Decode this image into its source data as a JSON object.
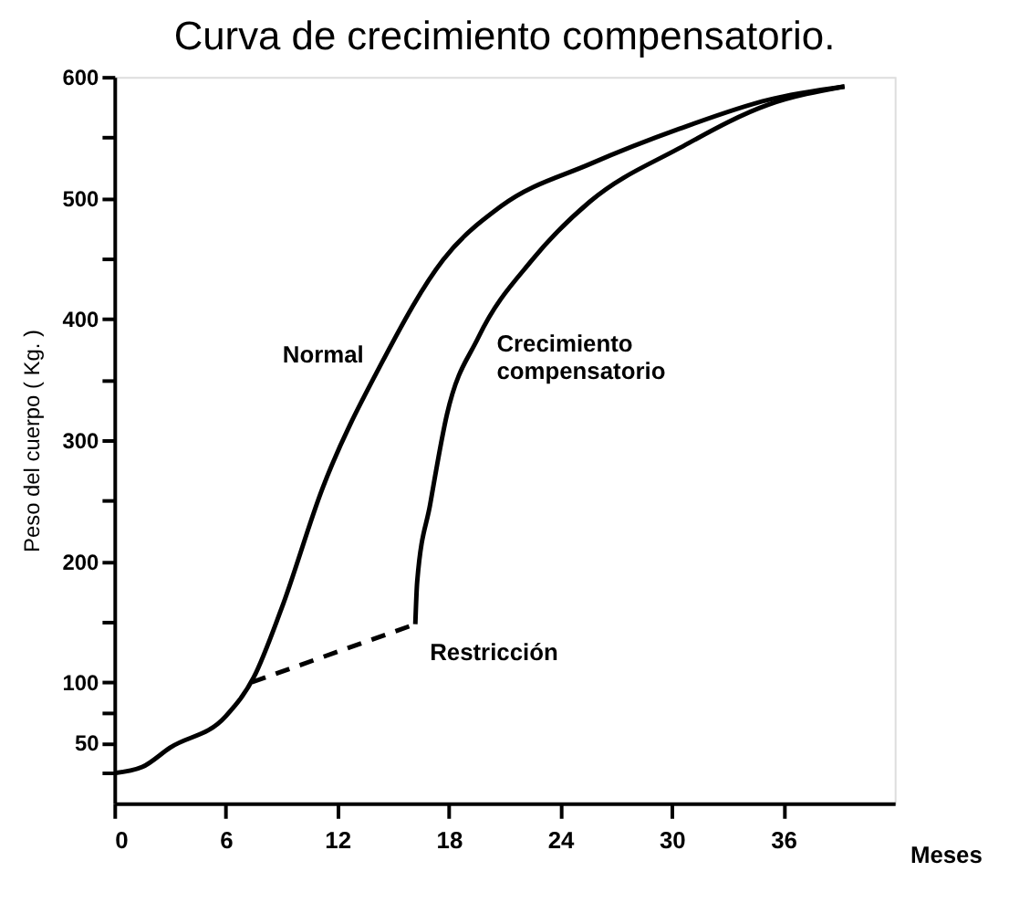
{
  "chart_data": {
    "type": "line",
    "title": "Curva de crecimiento compensatorio.",
    "xlabel": "Meses",
    "ylabel": "Peso del cuerpo ( Kg. )",
    "xlim": [
      0,
      42
    ],
    "xticks": [
      0,
      6,
      12,
      18,
      24,
      30,
      36
    ],
    "ylim": [
      0,
      600
    ],
    "yticks": [
      {
        "value": 25,
        "label": null
      },
      50,
      {
        "value": 75,
        "label": null
      },
      100,
      {
        "value": 150,
        "label": null
      },
      200,
      {
        "value": 250,
        "label": null
      },
      300,
      {
        "value": 350,
        "label": null
      },
      400,
      {
        "value": 450,
        "label": null
      },
      500,
      {
        "value": 550,
        "label": null
      },
      600
    ],
    "grid": false,
    "marker": "none",
    "series": [
      {
        "name": "Normal",
        "color": "#000000",
        "line_style": "solid",
        "x": [
          0,
          1.5,
          3,
          6,
          7.5,
          9,
          11.2,
          14.4,
          17.7,
          20.8,
          25.6,
          30.4,
          35.2,
          39.3
        ],
        "values": [
          25,
          30,
          46,
          72,
          104,
          161,
          260,
          364,
          449,
          493,
          528,
          557,
          581,
          592
        ]
      },
      {
        "name": "Restricción",
        "color": "#000000",
        "line_style": "dashed",
        "x": [
          7.4,
          16.2
        ],
        "values": [
          100,
          148
        ]
      },
      {
        "name": "Crecimiento compensatorio",
        "color": "#000000",
        "line_style": "solid",
        "x": [
          16.2,
          16.3,
          17.0,
          17.9,
          19.6,
          22.5,
          25.6,
          30.4,
          35.2,
          39.3
        ],
        "values": [
          148,
          183,
          247,
          321,
          385,
          449,
          497,
          541,
          577,
          592
        ]
      }
    ]
  }
}
